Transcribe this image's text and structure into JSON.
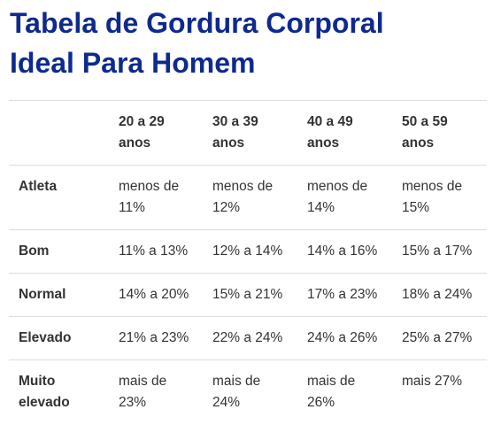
{
  "title": {
    "line1": "Tabela de Gordura Corporal",
    "line2": "Ideal Para Homem"
  },
  "table": {
    "headers": [
      "",
      "20 a 29 anos",
      "30 a 39 anos",
      "40 a 49 anos",
      "50 a 59 anos"
    ],
    "rows": [
      {
        "label": "Atleta",
        "cells": [
          "menos de 11%",
          "menos de 12%",
          "menos de 14%",
          "menos de 15%"
        ]
      },
      {
        "label": "Bom",
        "cells": [
          "11% a 13%",
          "12% a 14%",
          "14% a 16%",
          "15% a 17%"
        ]
      },
      {
        "label": "Normal",
        "cells": [
          "14% a 20%",
          "15% a 21%",
          "17% a 23%",
          "18% a 24%"
        ]
      },
      {
        "label": "Elevado",
        "cells": [
          "21% a 23%",
          "22% a 24%",
          "24% a 26%",
          "25% a 27%"
        ]
      },
      {
        "label": "Muito elevado",
        "cells": [
          "mais de 23%",
          "mais de 24%",
          "mais de 26%",
          "mais 27%"
        ]
      }
    ]
  },
  "colors": {
    "title": "#0e2a8e",
    "text": "#333333",
    "row_border": "#dddddd"
  }
}
